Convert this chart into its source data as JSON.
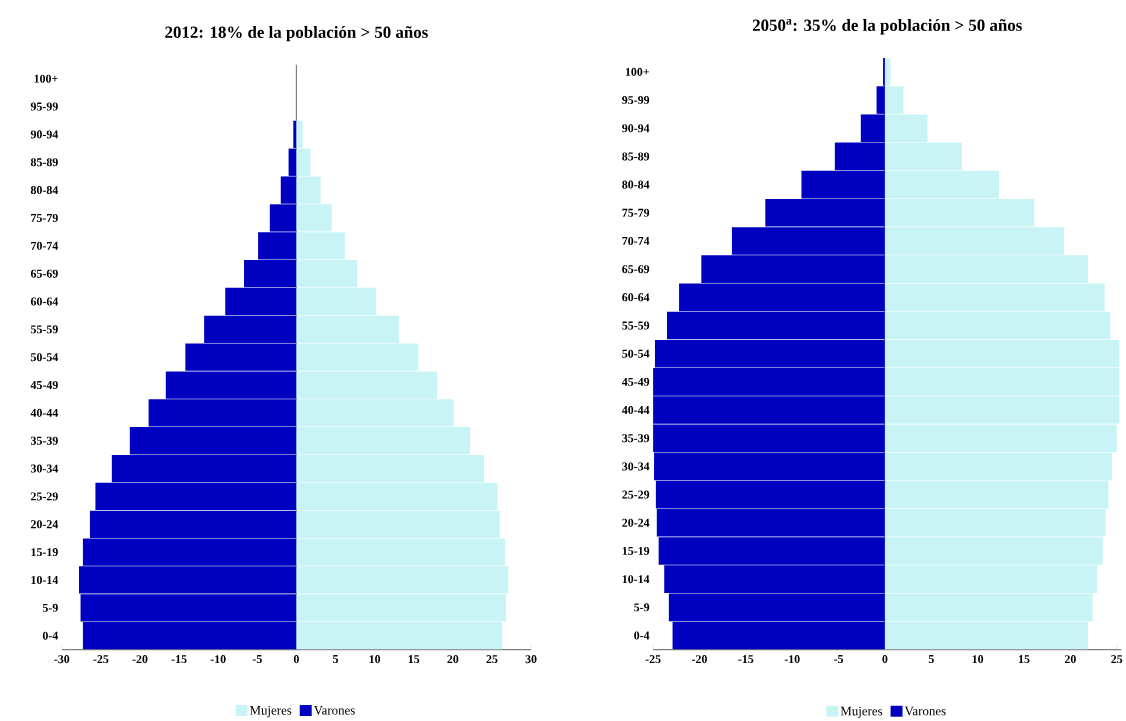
{
  "chart_data": [
    {
      "type": "bar",
      "orientation": "horizontal",
      "title": "2012: 18% de la población > 50 años",
      "categories": [
        "100+",
        "95-99",
        "90-94",
        "85-89",
        "80-84",
        "75-79",
        "70-74",
        "65-69",
        "60-64",
        "55-59",
        "50-54",
        "45-49",
        "40-44",
        "35-39",
        "30-34",
        "25-29",
        "20-24",
        "15-19",
        "10-14",
        "5-9",
        "0-4"
      ],
      "series": [
        {
          "name": "Mujeres",
          "color": "#c8f4f6",
          "values": [
            null,
            null,
            0.8,
            1.8,
            3.1,
            4.5,
            6.2,
            7.8,
            10.2,
            13.1,
            15.6,
            18.0,
            20.1,
            22.2,
            24.0,
            25.7,
            26.0,
            26.7,
            27.1,
            26.8,
            26.3
          ]
        },
        {
          "name": "Varones",
          "color": "#0000c0",
          "values": [
            null,
            null,
            -0.4,
            -1.0,
            -2.0,
            -3.4,
            -4.9,
            -6.7,
            -9.1,
            -11.8,
            -14.2,
            -16.7,
            -18.9,
            -21.3,
            -23.6,
            -25.7,
            -26.4,
            -27.3,
            -27.8,
            -27.6,
            -27.3
          ]
        }
      ],
      "xlim": [
        -30,
        30
      ],
      "xticks": [
        -30,
        -25,
        -20,
        -15,
        -10,
        -5,
        0,
        5,
        10,
        15,
        20,
        25,
        30
      ],
      "legend": "bottom",
      "stacked": true
    },
    {
      "type": "bar",
      "orientation": "horizontal",
      "title": "2050$^{a}$: 35% de la población > 50 años",
      "categories": [
        "100+",
        "95-99",
        "90-94",
        "85-89",
        "80-84",
        "75-79",
        "70-74",
        "65-69",
        "60-64",
        "55-59",
        "50-54",
        "45-49",
        "40-44",
        "35-39",
        "30-34",
        "25-29",
        "20-24",
        "15-19",
        "10-14",
        "5-9",
        "0-4"
      ],
      "series": [
        {
          "name": "Mujeres",
          "color": "#c8f4f6",
          "values": [
            0.6,
            2.0,
            4.6,
            8.3,
            12.3,
            16.1,
            19.3,
            21.9,
            23.7,
            24.3,
            25.3,
            25.3,
            25.3,
            25.0,
            24.5,
            24.1,
            23.8,
            23.5,
            22.9,
            22.4,
            21.9
          ]
        },
        {
          "name": "Varones",
          "color": "#0000c0",
          "values": [
            -0.2,
            -0.9,
            -2.6,
            -5.4,
            -9.0,
            -12.9,
            -16.5,
            -19.8,
            -22.2,
            -23.5,
            -24.8,
            -25.0,
            -25.0,
            -25.0,
            -24.9,
            -24.7,
            -24.6,
            -24.4,
            -23.8,
            -23.3,
            -22.9
          ]
        }
      ],
      "xlim": [
        -25,
        25.5
      ],
      "xticks": [
        -25,
        -20,
        -15,
        -10,
        -5,
        0,
        5,
        10,
        15,
        20,
        25
      ],
      "legend": "bottom",
      "stacked": true
    }
  ]
}
